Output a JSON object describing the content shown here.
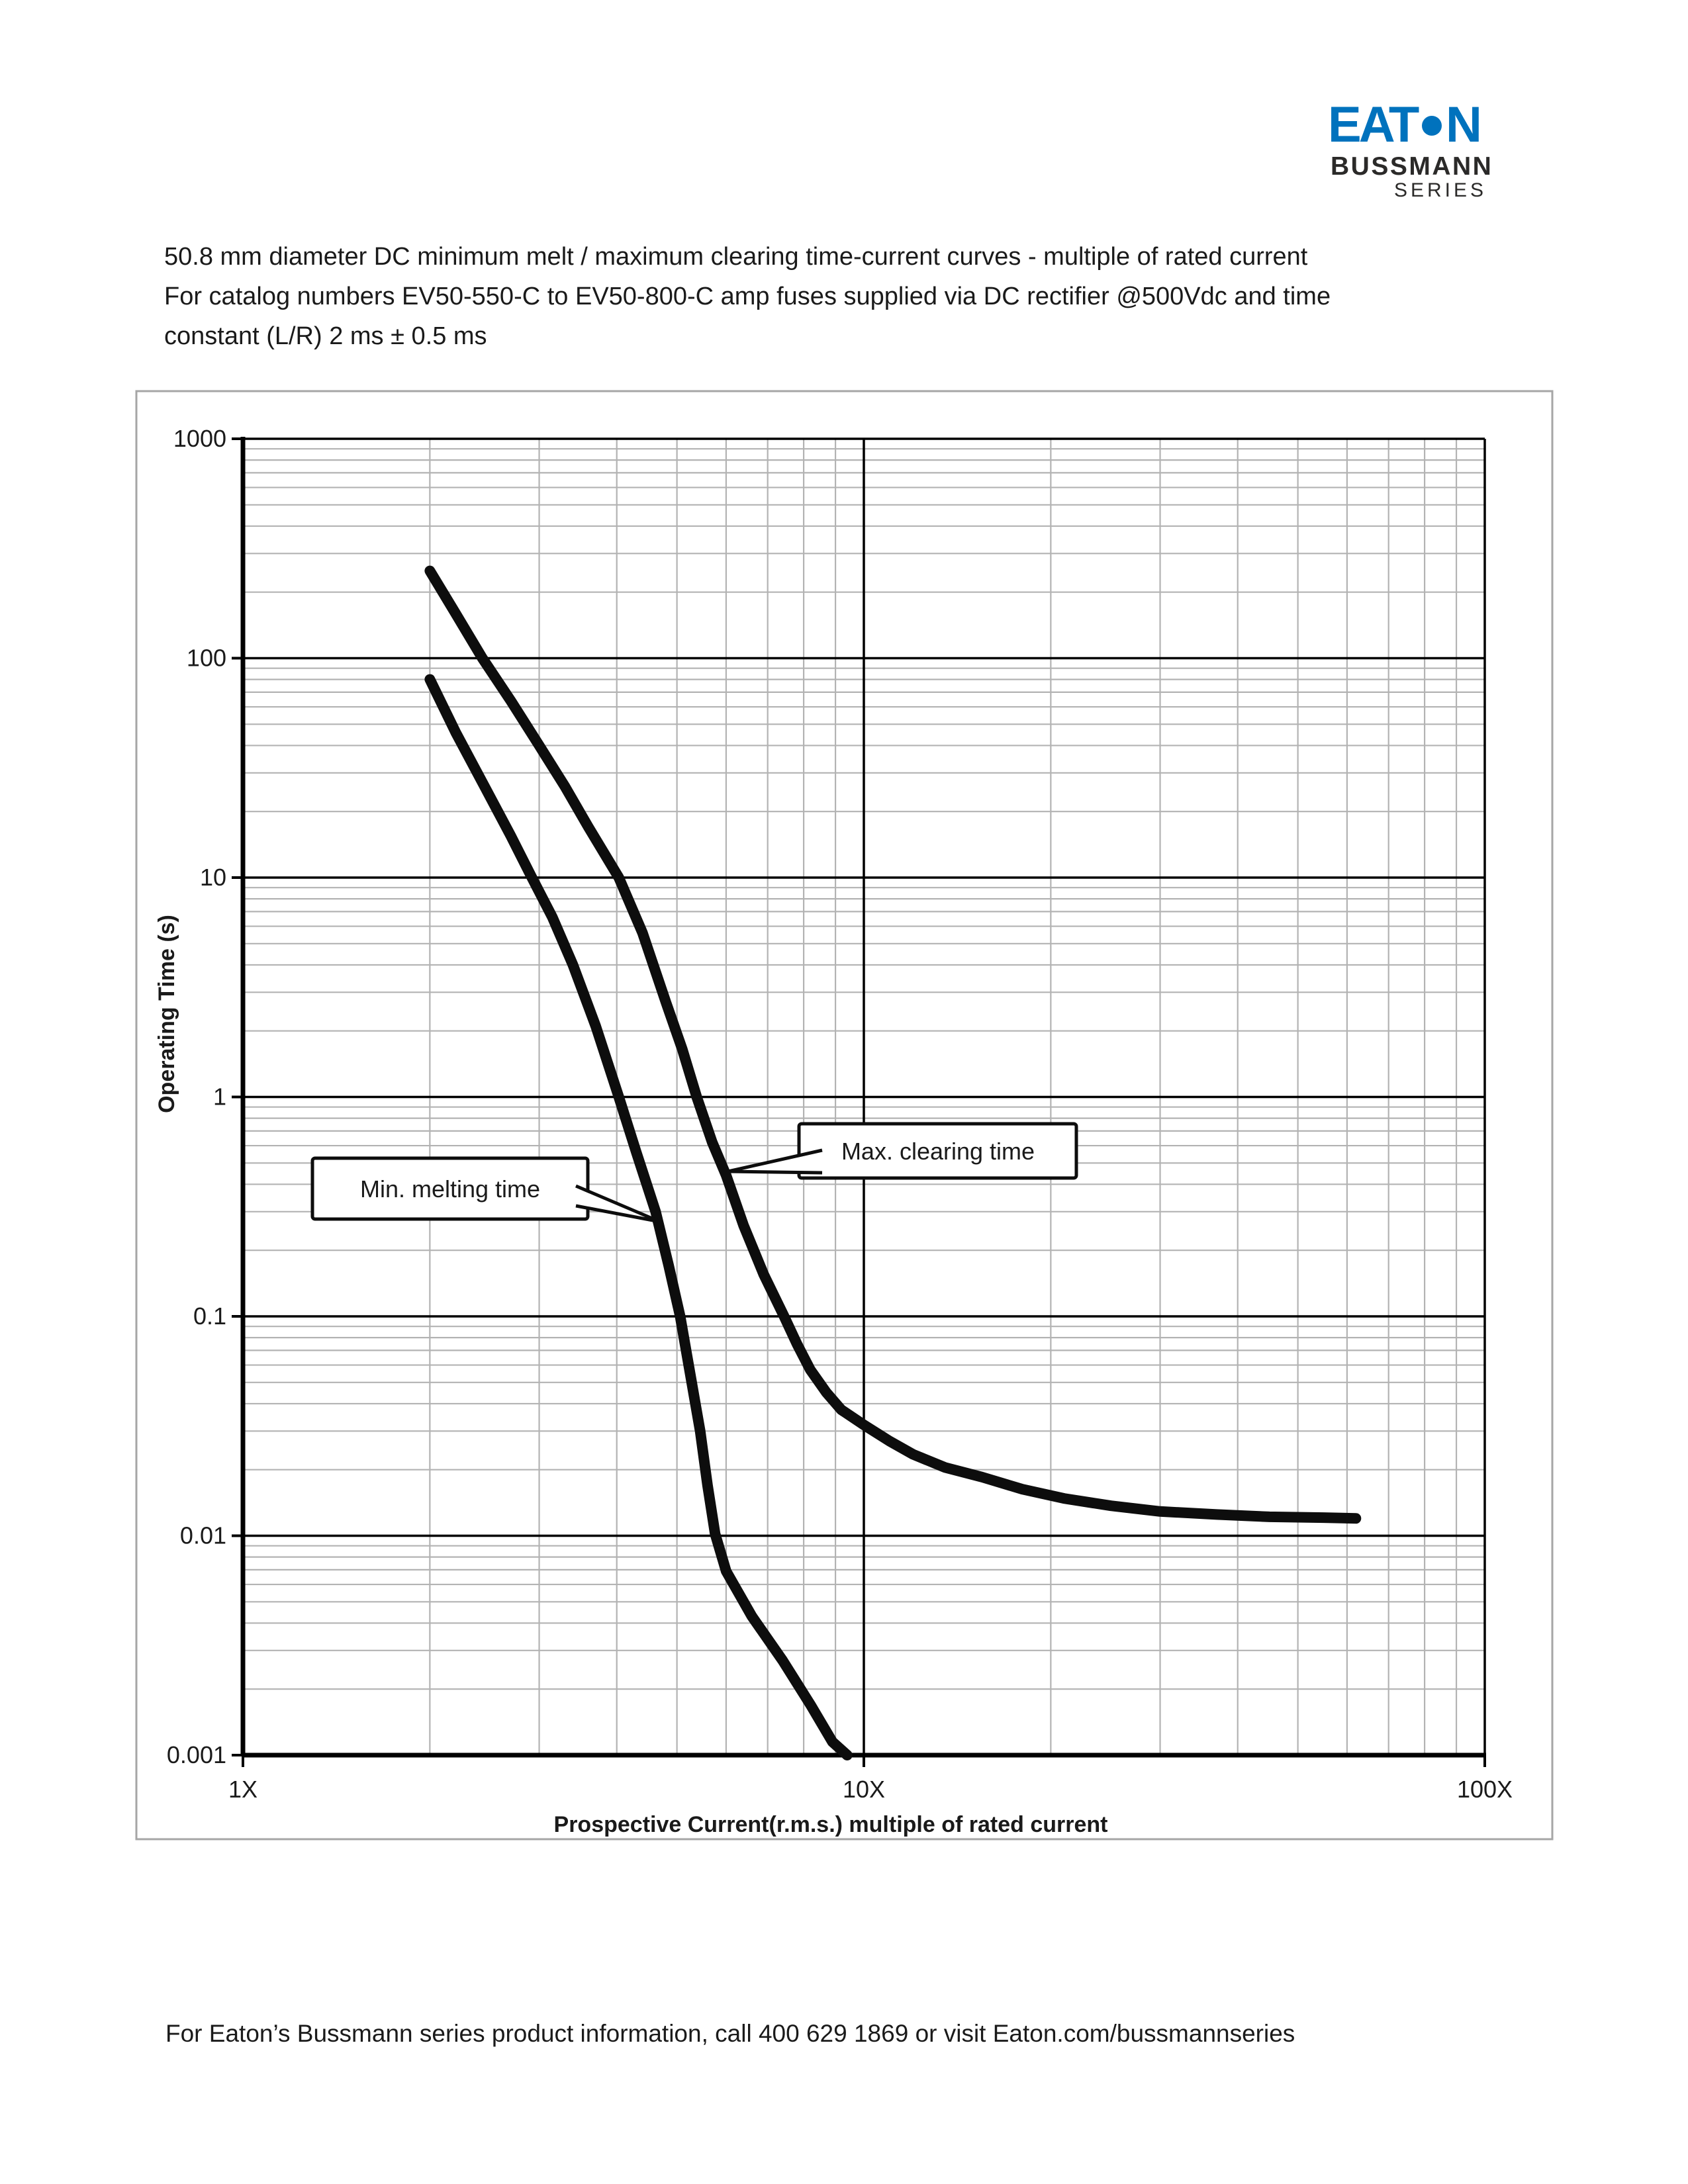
{
  "page": {
    "logo": {
      "eaton_left": "EAT",
      "eaton_right": "N",
      "bussmann": "BUSSMANN",
      "series": "SERIES"
    },
    "title_lines": [
      "50.8 mm diameter DC minimum melt / maximum clearing time-current curves - multiple of rated current",
      "For catalog numbers EV50-550-C to EV50-800-C amp fuses supplied via DC rectifier @500Vdc and time",
      "constant (L/R) 2 ms ± 0.5 ms"
    ],
    "footer": "For Eaton’s Bussmann series product information, call 400 629 1869 or visit Eaton.com/bussmannseries"
  },
  "brand_colors": {
    "eaton_blue": "#0072bd",
    "logo_dark": "#2b2a29"
  },
  "chart_data": {
    "type": "line",
    "title": "",
    "x_axis": {
      "label": "Prospective Current(r.m.s.) multiple of rated current",
      "scale": "log",
      "range": [
        1,
        100
      ],
      "ticks": [
        {
          "value": 1,
          "label": "1X"
        },
        {
          "value": 10,
          "label": "10X"
        },
        {
          "value": 100,
          "label": "100X"
        }
      ],
      "minor_grid": true
    },
    "y_axis": {
      "label": "Operating Time (s)",
      "scale": "log",
      "range": [
        0.001,
        1000
      ],
      "ticks": [
        {
          "value": 1000,
          "label": "1000"
        },
        {
          "value": 100,
          "label": "100"
        },
        {
          "value": 10,
          "label": "10"
        },
        {
          "value": 1,
          "label": "1"
        },
        {
          "value": 0.1,
          "label": "0.1"
        },
        {
          "value": 0.01,
          "label": "0.01"
        },
        {
          "value": 0.001,
          "label": "0.001"
        }
      ],
      "minor_grid": true
    },
    "grid": {
      "minor_color": "#b3b3b3",
      "major_color": "#000000",
      "border_color": "#a6a6a6"
    },
    "series": [
      {
        "name": "Min. melting time",
        "color": "#0d0d0d",
        "points": [
          [
            2,
            80
          ],
          [
            2.2,
            46
          ],
          [
            2.45,
            26
          ],
          [
            2.7,
            15.5
          ],
          [
            2.92,
            10
          ],
          [
            3.15,
            6.6
          ],
          [
            3.4,
            4.0
          ],
          [
            3.7,
            2.1
          ],
          [
            4.03,
            1
          ],
          [
            4.3,
            0.56
          ],
          [
            4.62,
            0.3
          ],
          [
            4.85,
            0.17
          ],
          [
            5.06,
            0.1
          ],
          [
            5.25,
            0.055
          ],
          [
            5.45,
            0.03
          ],
          [
            5.6,
            0.017
          ],
          [
            5.76,
            0.0102
          ],
          [
            6.0,
            0.0069
          ],
          [
            6.6,
            0.0043
          ],
          [
            7.4,
            0.0027
          ],
          [
            8.2,
            0.0017
          ],
          [
            8.9,
            0.00115
          ],
          [
            9.4,
            0.001
          ]
        ]
      },
      {
        "name": "Max. clearing time",
        "color": "#0d0d0d",
        "points": [
          [
            2,
            250
          ],
          [
            2.2,
            160
          ],
          [
            2.43,
            100
          ],
          [
            2.7,
            64
          ],
          [
            3,
            40
          ],
          [
            3.3,
            26
          ],
          [
            3.6,
            17
          ],
          [
            4.03,
            10
          ],
          [
            4.4,
            5.6
          ],
          [
            4.8,
            2.7
          ],
          [
            5.1,
            1.65
          ],
          [
            5.38,
            1
          ],
          [
            5.7,
            0.62
          ],
          [
            6.0,
            0.44
          ],
          [
            6.4,
            0.26
          ],
          [
            6.9,
            0.155
          ],
          [
            7.44,
            0.1
          ],
          [
            7.8,
            0.075
          ],
          [
            8.2,
            0.057
          ],
          [
            8.7,
            0.045
          ],
          [
            9.2,
            0.0375
          ],
          [
            10,
            0.032
          ],
          [
            11,
            0.027
          ],
          [
            12,
            0.0235
          ],
          [
            13.5,
            0.0205
          ],
          [
            15.5,
            0.0185
          ],
          [
            18,
            0.0163
          ],
          [
            21,
            0.0148
          ],
          [
            25,
            0.0137
          ],
          [
            30,
            0.0129
          ],
          [
            37,
            0.0125
          ],
          [
            45,
            0.0122
          ],
          [
            55,
            0.0121
          ],
          [
            62,
            0.012
          ]
        ]
      }
    ],
    "annotations": [
      {
        "text": "Min. melting time",
        "attaches_to": "Min. melting time"
      },
      {
        "text": "Max. clearing time",
        "attaches_to": "Max. clearing time"
      }
    ]
  }
}
